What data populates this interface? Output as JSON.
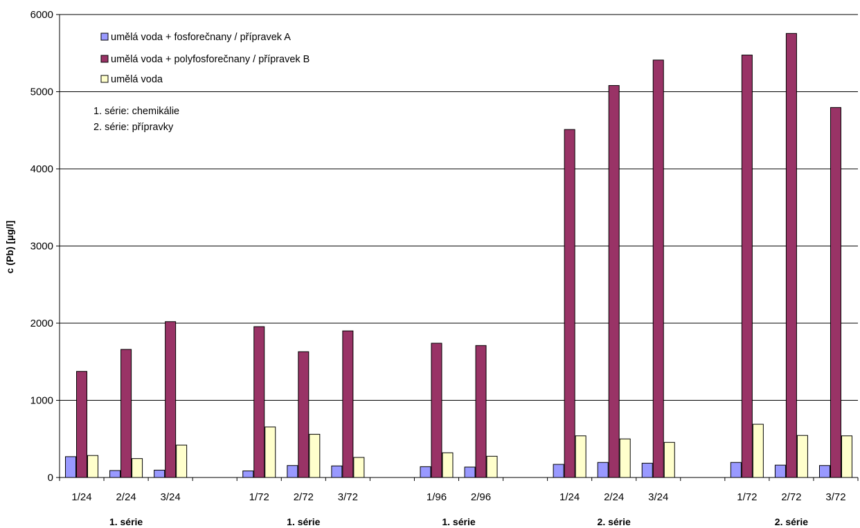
{
  "chart_data": {
    "type": "bar",
    "ylabel": "c (Pb) [µg/l]",
    "ylim": [
      0,
      6000
    ],
    "yticks": [
      "0",
      "1000",
      "2000",
      "3000",
      "4000",
      "5000",
      "6000"
    ],
    "grid": "horizontal",
    "legend_position": "top-left",
    "categories": [
      "1/24",
      "2/24",
      "3/24",
      "",
      "1/72",
      "2/72",
      "3/72",
      "",
      "1/96",
      "2/96",
      "",
      "1/24",
      "2/24",
      "3/24",
      "",
      "1/72",
      "2/72",
      "3/72"
    ],
    "groups": [
      {
        "label": "1. série"
      },
      {
        "label": "1. série"
      },
      {
        "label": "1. série"
      },
      {
        "label": "2. série"
      },
      {
        "label": "2. série"
      }
    ],
    "series": [
      {
        "name": "umělá voda + fosforečnany / přípravek A",
        "color": "#9999ff",
        "values": [
          270,
          90,
          95,
          null,
          85,
          155,
          150,
          null,
          140,
          135,
          null,
          170,
          195,
          185,
          null,
          195,
          160,
          155
        ]
      },
      {
        "name": "umělá voda + polyfosforečnany / přípravek B",
        "color": "#993366",
        "values": [
          1375,
          1660,
          2020,
          null,
          1955,
          1630,
          1900,
          null,
          1740,
          1710,
          null,
          4510,
          5080,
          5410,
          null,
          5475,
          5755,
          4795
        ]
      },
      {
        "name": "umělá voda",
        "color": "#ffffcc",
        "values": [
          285,
          245,
          420,
          null,
          655,
          560,
          260,
          null,
          320,
          275,
          null,
          540,
          500,
          455,
          null,
          690,
          545,
          540
        ]
      }
    ],
    "annotations": [
      "1. série: chemikálie",
      "2. série: přípravky"
    ]
  }
}
